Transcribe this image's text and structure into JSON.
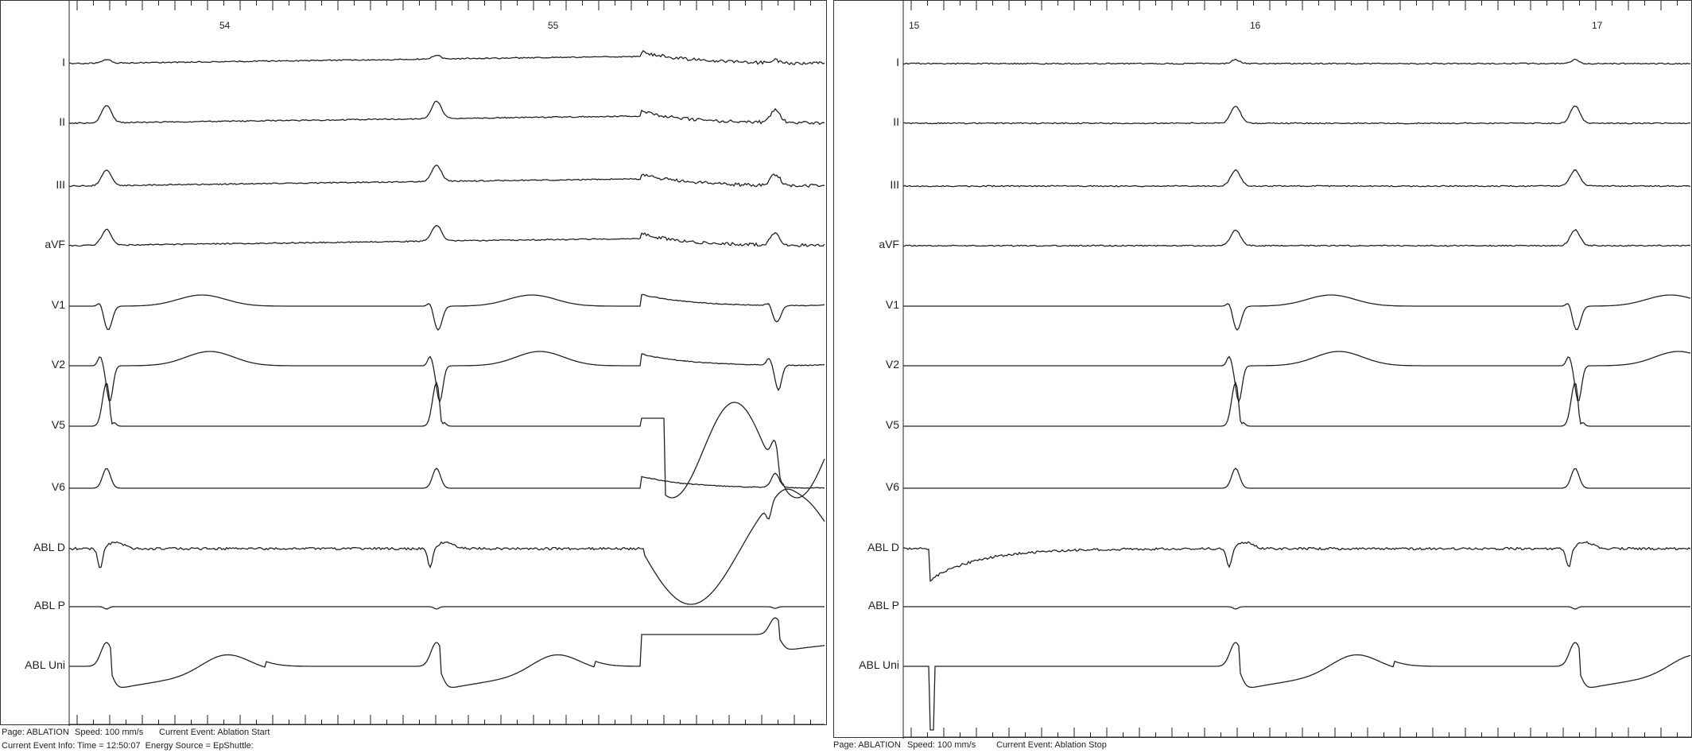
{
  "channels": [
    "I",
    "II",
    "III",
    "aVF",
    "V1",
    "V2",
    "V5",
    "V6",
    "ABL D",
    "ABL P",
    "ABL Uni"
  ],
  "left_panel": {
    "time_labels": [
      "54",
      "55"
    ],
    "footer_line1": {
      "page": "Page: ABLATION",
      "speed": "Speed: 100 mm/s",
      "event": "Current Event: Ablation Start"
    },
    "footer_line2": "Current Event Info: Time = 12:50:07  Energy Source = EpShuttle:"
  },
  "right_panel": {
    "time_labels": [
      "15",
      "16",
      "17"
    ],
    "footer_line1": {
      "page": "Page: ABLATION",
      "speed": "Speed: 100 mm/s",
      "event": "Current Event: Ablation Stop"
    }
  },
  "trace_color": "#222222"
}
